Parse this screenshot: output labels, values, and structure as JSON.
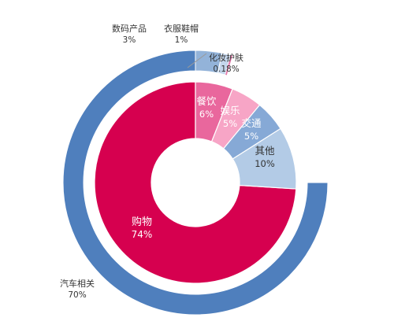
{
  "chart_data": {
    "type": "pie",
    "title": "",
    "rings": [
      {
        "ring": "outer",
        "slices": [
          {
            "label": "汽车相关",
            "percent_text": "70%",
            "value": 70,
            "color": "#4f7fbd"
          },
          {
            "label": "数码产品",
            "percent_text": "3%",
            "value": 3,
            "color": "#93b3d9"
          },
          {
            "label": "衣服鞋帽",
            "percent_text": "1%",
            "value": 1,
            "color": "#c4d6ec"
          },
          {
            "label": "化妆护肤",
            "percent_text": "0.18%",
            "value": 0.18,
            "color": "#e57aab"
          }
        ]
      },
      {
        "ring": "inner",
        "slices": [
          {
            "label": "购物",
            "percent_text": "74%",
            "value": 74,
            "color": "#d6004f"
          },
          {
            "label": "餐饮",
            "percent_text": "6%",
            "value": 6,
            "color": "#e9679d"
          },
          {
            "label": "娱乐",
            "percent_text": "5%",
            "value": 5,
            "color": "#f7a5c6"
          },
          {
            "label": "交通",
            "percent_text": "5%",
            "value": 5,
            "color": "#86a9d6"
          },
          {
            "label": "其他",
            "percent_text": "10%",
            "value": 10,
            "color": "#b3cbe6"
          }
        ]
      }
    ],
    "legend": "none"
  }
}
